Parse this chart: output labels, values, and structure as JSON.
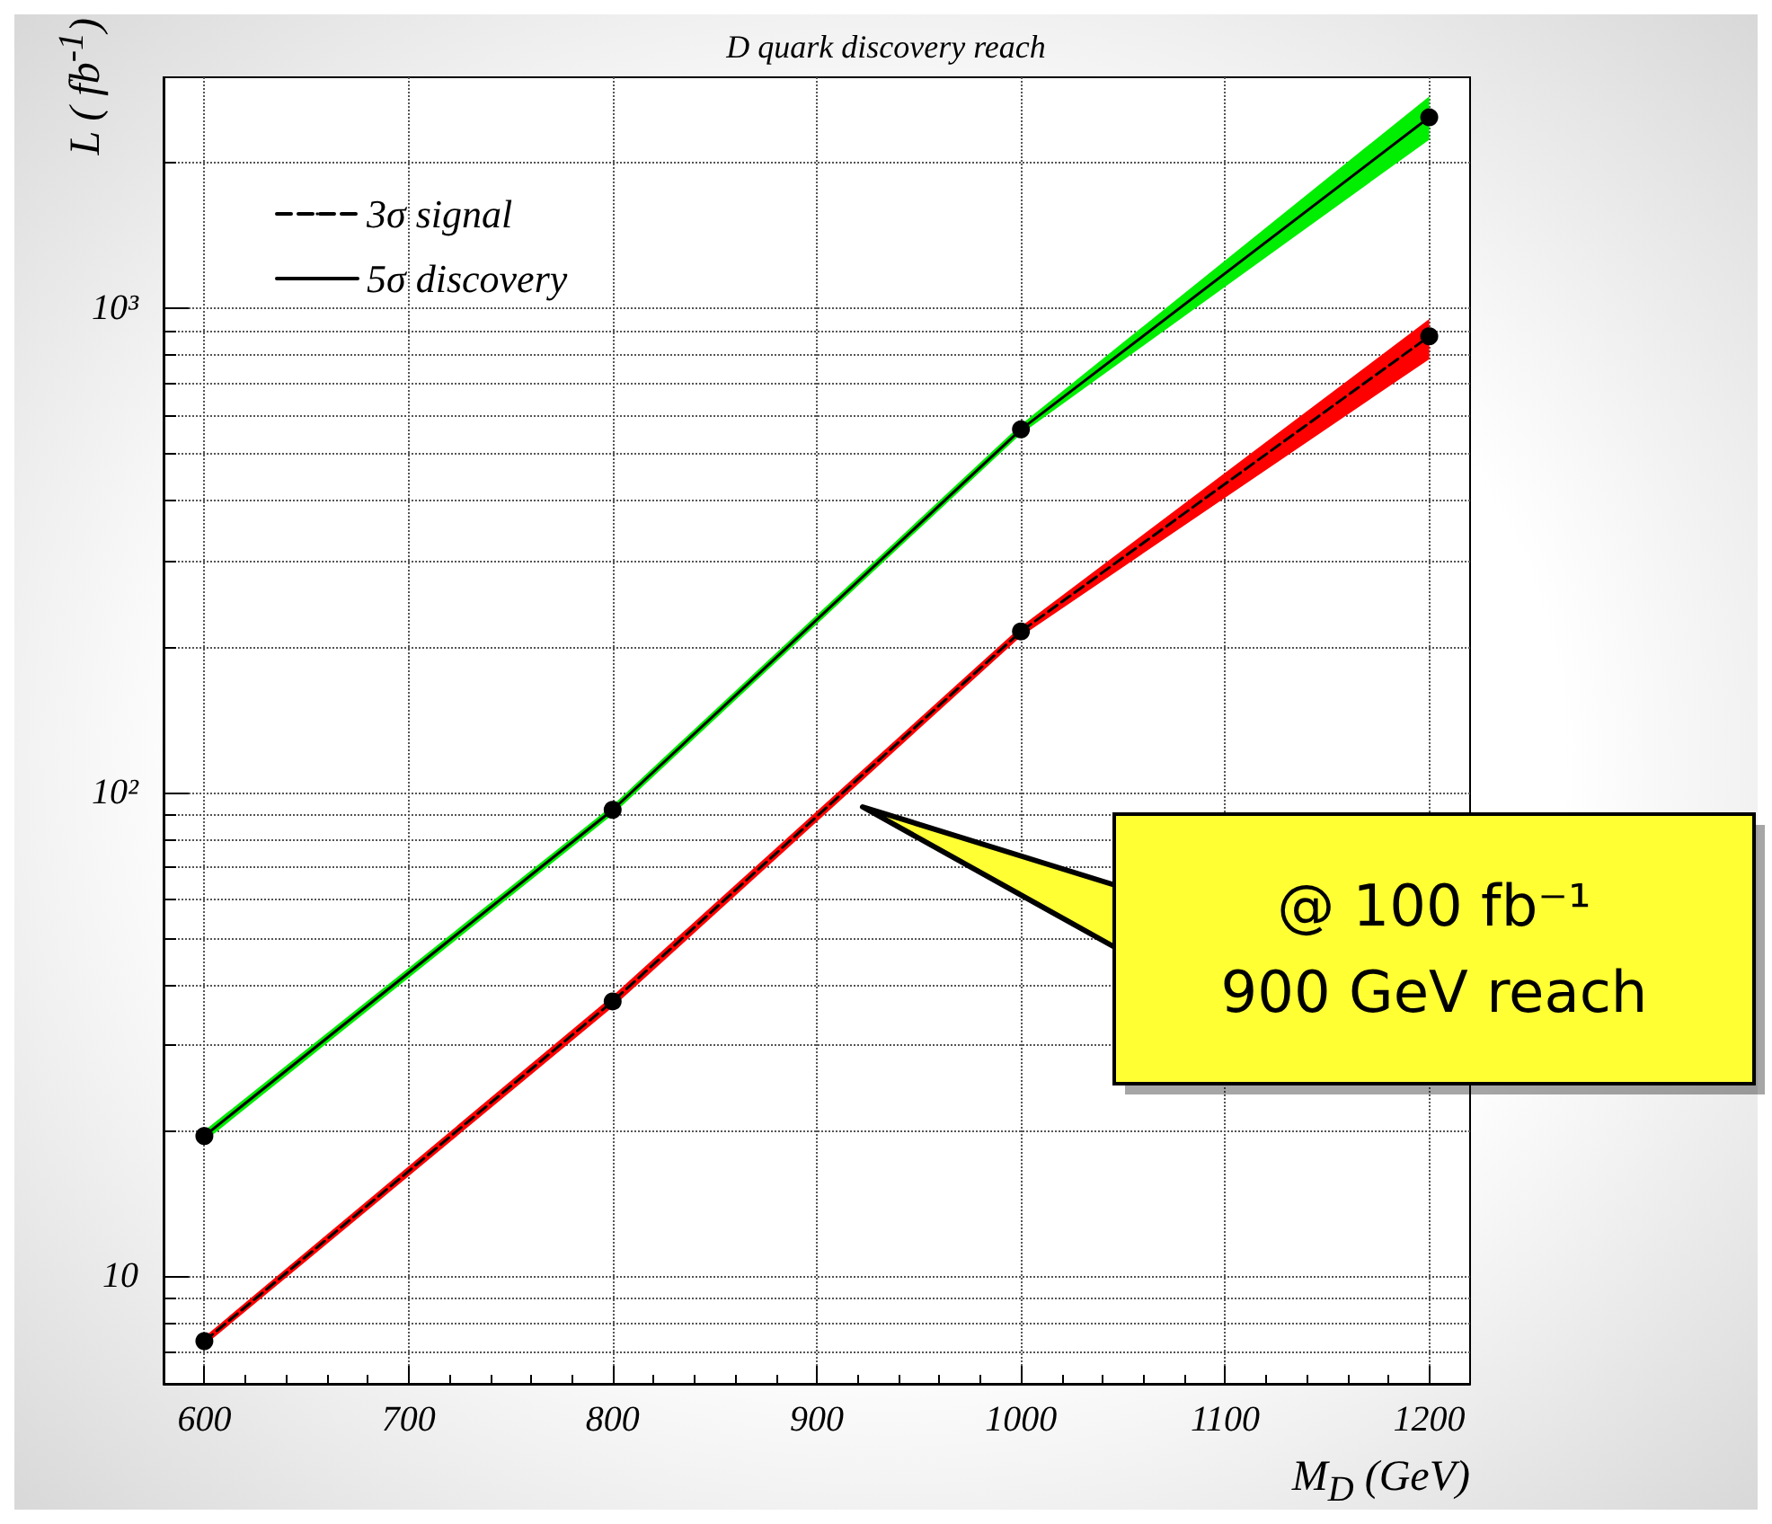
{
  "chart_data": {
    "type": "line",
    "title": "D quark discovery reach",
    "xlabel": "M$_{D}$ (GeV)",
    "ylabel": "L ( fb$^{-1}$)",
    "x": [
      600,
      800,
      1000,
      1200
    ],
    "series": [
      {
        "name": "3σ signal",
        "color": "#000000",
        "line_style": "dashed",
        "values": [
          7.35,
          37,
          215,
          875
        ]
      },
      {
        "name": "5σ discovery",
        "color": "#000000",
        "line_style": "solid",
        "values": [
          19.5,
          92,
          562,
          2480
        ]
      },
      {
        "type": "area",
        "color": "#ff0000",
        "values": [
          null,
          null,
          null,
          null
        ],
        "lower": [
          7.2,
          36,
          210,
          785
        ],
        "upper": [
          7.5,
          38,
          220,
          950
        ]
      },
      {
        "type": "area",
        "color": "#00ee00",
        "values": [
          null,
          null,
          null,
          null
        ],
        "lower": [
          19,
          90,
          550,
          2230
        ],
        "upper": [
          20,
          94,
          575,
          2740
        ]
      }
    ],
    "xlim": [
      580,
      1220
    ],
    "xticks": [
      600,
      700,
      800,
      900,
      1000,
      1100,
      1200
    ],
    "ylim": [
      6,
      3000
    ],
    "yticks": [
      {
        "value": 10,
        "label": "10"
      },
      {
        "value": 100,
        "label": "10²"
      },
      {
        "value": 1000,
        "label": "10³"
      }
    ],
    "log": "y",
    "grid": true,
    "legend": "top left",
    "marker": "circle",
    "annotations": [
      "@ 100 fb⁻¹\n900 GeV reach"
    ]
  }
}
